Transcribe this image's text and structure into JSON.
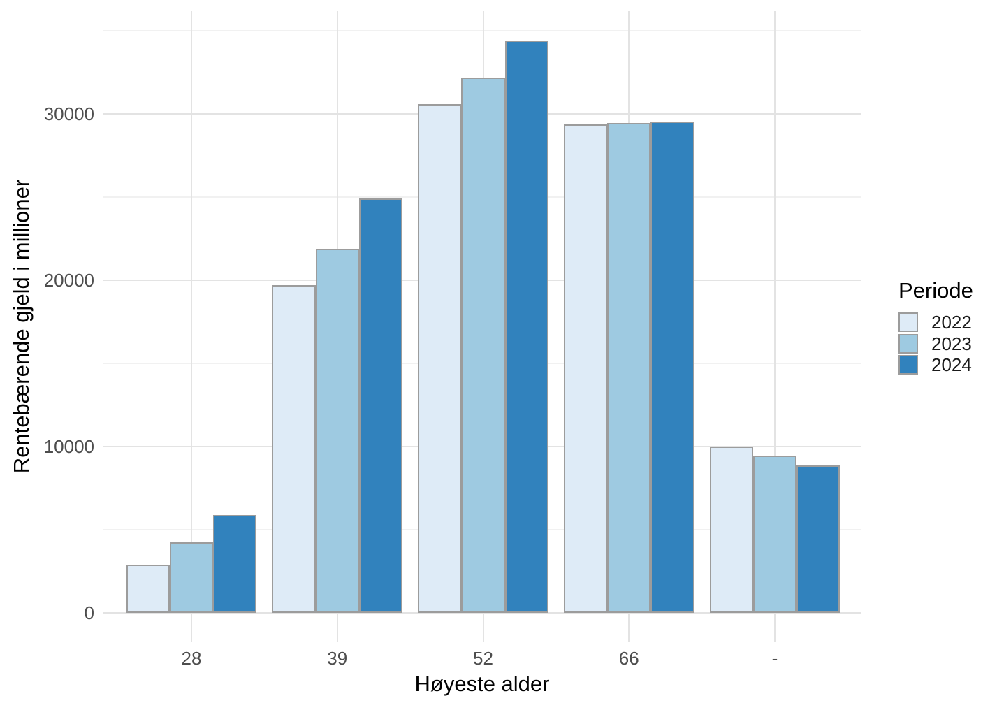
{
  "chart_data": {
    "type": "bar",
    "title": "",
    "xlabel": "Høyeste alder",
    "ylabel": "Rentebærende gjeld i millioner",
    "categories": [
      "28",
      "39",
      "52",
      "66",
      "-"
    ],
    "series": [
      {
        "name": "2022",
        "color": "#DEEBF7",
        "values": [
          2900,
          19700,
          30600,
          29350,
          10000
        ]
      },
      {
        "name": "2023",
        "color": "#9ECAE1",
        "values": [
          4250,
          21900,
          32200,
          29450,
          9450
        ]
      },
      {
        "name": "2024",
        "color": "#3182BD",
        "values": [
          5900,
          24900,
          34400,
          29550,
          8850
        ]
      }
    ],
    "y_major_ticks": [
      0,
      10000,
      20000,
      30000
    ],
    "y_minor_gridlines": [
      5000,
      15000,
      25000,
      35000
    ],
    "ylim": [
      0,
      36200
    ],
    "legend_title": "Periode",
    "legend_position": "right",
    "grid": "major-and-minor, no axis lines",
    "style_colors": {
      "bar_border": "#9c9c9c",
      "grid_major": "#e3e3e3",
      "grid_minor": "#f1f1f1",
      "axis_text": "#4d4d4d",
      "title_text": "#000000",
      "background": "#ffffff"
    }
  }
}
